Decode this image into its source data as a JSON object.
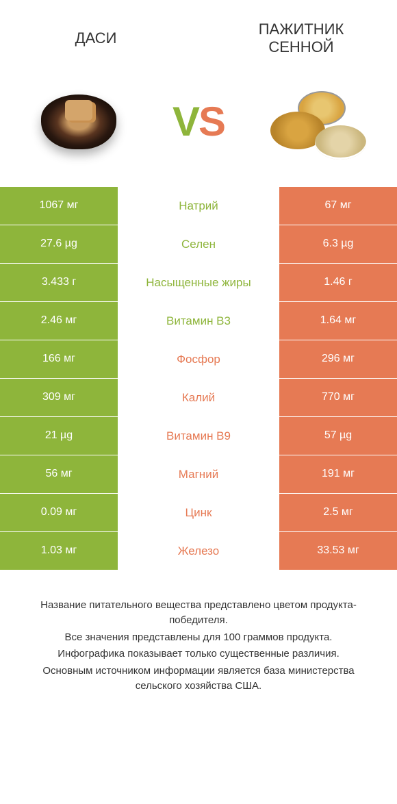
{
  "colors": {
    "green": "#8eb53b",
    "orange": "#e67a54",
    "text": "#333333",
    "white": "#ffffff"
  },
  "header": {
    "left_title": "ДАСИ",
    "right_title": "ПАЖИТНИК СЕННОЙ"
  },
  "vs": {
    "v": "V",
    "s": "S"
  },
  "rows": [
    {
      "left": "1067 мг",
      "mid": "Натрий",
      "right": "67 мг",
      "winner": "left"
    },
    {
      "left": "27.6 µg",
      "mid": "Селен",
      "right": "6.3 µg",
      "winner": "left"
    },
    {
      "left": "3.433 г",
      "mid": "Насыщенные жиры",
      "right": "1.46 г",
      "winner": "left"
    },
    {
      "left": "2.46 мг",
      "mid": "Витамин B3",
      "right": "1.64 мг",
      "winner": "left"
    },
    {
      "left": "166 мг",
      "mid": "Фосфор",
      "right": "296 мг",
      "winner": "right"
    },
    {
      "left": "309 мг",
      "mid": "Калий",
      "right": "770 мг",
      "winner": "right"
    },
    {
      "left": "21 µg",
      "mid": "Витамин B9",
      "right": "57 µg",
      "winner": "right"
    },
    {
      "left": "56 мг",
      "mid": "Магний",
      "right": "191 мг",
      "winner": "right"
    },
    {
      "left": "0.09 мг",
      "mid": "Цинк",
      "right": "2.5 мг",
      "winner": "right"
    },
    {
      "left": "1.03 мг",
      "mid": "Железо",
      "right": "33.53 мг",
      "winner": "right"
    }
  ],
  "footer": {
    "l1": "Название питательного вещества представлено цветом продукта-победителя.",
    "l2": "Все значения представлены для 100 граммов продукта.",
    "l3": "Инфографика показывает только существенные различия.",
    "l4": "Основным источником информации является база министерства сельского хозяйства США."
  }
}
